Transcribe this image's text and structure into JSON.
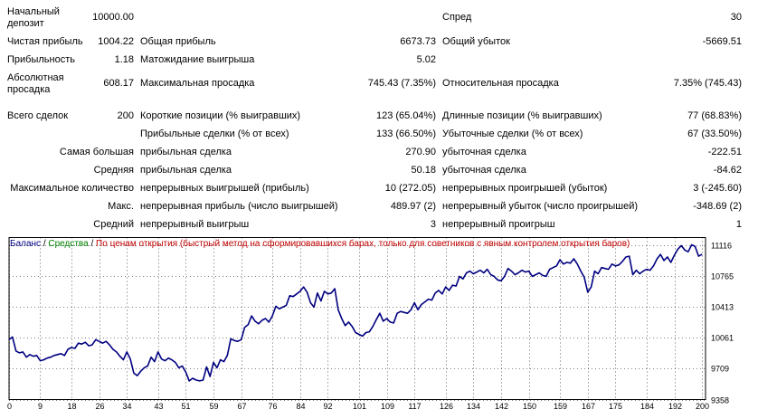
{
  "report": {
    "initial_deposit": {
      "label": "Начальный депозит",
      "value": "10000.00"
    },
    "spread": {
      "label": "Спред",
      "value": "30"
    },
    "net_profit": {
      "label": "Чистая прибыль",
      "value": "1004.22"
    },
    "gross_profit": {
      "label": "Общая прибыль",
      "value": "6673.73"
    },
    "gross_loss": {
      "label": "Общий убыток",
      "value": "-5669.51"
    },
    "profit_factor": {
      "label": "Прибыльность",
      "value": "1.18"
    },
    "expected_payoff": {
      "label": "Матожидание выигрыша",
      "value": "5.02"
    },
    "absolute_drawdown": {
      "label": "Абсолютная просадка",
      "value": "608.17"
    },
    "maximal_drawdown": {
      "label": "Максимальная просадка",
      "value": "745.43 (7.35%)"
    },
    "relative_drawdown": {
      "label": "Относительная просадка",
      "value": "7.35% (745.43)"
    },
    "total_trades": {
      "label": "Всего сделок",
      "value": "200"
    },
    "short_positions": {
      "label": "Короткие позиции (% выигравших)",
      "value": "123 (65.04%)"
    },
    "long_positions": {
      "label": "Длинные позиции (% выигравших)",
      "value": "77 (68.83%)"
    },
    "profit_trades": {
      "label": "Прибыльные сделки (% от всех)",
      "value": "133 (66.50%)"
    },
    "loss_trades": {
      "label": "Убыточные сделки (% от всех)",
      "value": "67 (33.50%)"
    },
    "largest": {
      "label": "Самая большая",
      "profit_label": "прибыльная сделка",
      "profit_value": "270.90",
      "loss_label": "убыточная сделка",
      "loss_value": "-222.51"
    },
    "average": {
      "label": "Средняя",
      "profit_label": "прибыльная сделка",
      "profit_value": "50.18",
      "loss_label": "убыточная сделка",
      "loss_value": "-84.62"
    },
    "max_consecutive": {
      "label": "Максимальное количество",
      "wins_label": "непрерывных выигрышей (прибыль)",
      "wins_value": "10 (272.05)",
      "losses_label": "непрерывных проигрышей (убыток)",
      "losses_value": "3 (-245.60)"
    },
    "max_consecutive_amount": {
      "label": "Макс.",
      "wins_label": "непрерывная прибыль (число выигрышей)",
      "wins_value": "489.97 (2)",
      "losses_label": "непрерывный убыток (число проигрышей)",
      "losses_value": "-348.69 (2)"
    },
    "avg_consecutive": {
      "label": "Средний",
      "wins_label": "непрерывный выигрыш",
      "wins_value": "3",
      "losses_label": "непрерывный проигрыш",
      "losses_value": "1"
    }
  },
  "chart_legend": {
    "balance": "Баланс",
    "separator": " / ",
    "equity": "Средства",
    "mode": "По ценам открытия (быстрый метод на сформировавшихся барах, только для советников с явным контролем открытия баров)"
  },
  "chart_data": {
    "type": "line",
    "colors": {
      "balance": "#000080",
      "grid": "#000000"
    },
    "grid": true,
    "x_ticks": [
      0,
      9,
      18,
      26,
      34,
      43,
      51,
      59,
      67,
      76,
      84,
      92,
      101,
      109,
      117,
      126,
      134,
      142,
      150,
      159,
      167,
      175,
      184,
      192,
      200
    ],
    "x_tick_labels": [
      "0",
      "9",
      "18",
      "26",
      "34",
      "43",
      "51",
      "59",
      "67",
      "76",
      "84",
      "92",
      "101",
      "109",
      "117",
      "126",
      "134",
      "142",
      "150",
      "159",
      "167",
      "175",
      "184",
      "192",
      "200"
    ],
    "y_ticks": [
      9358,
      9709,
      10061,
      10413,
      10765,
      11116
    ],
    "y_tick_labels": [
      "9358",
      "9709",
      "10061",
      "10413",
      "10765",
      "11116"
    ],
    "xlim": [
      0,
      201
    ],
    "ylim": [
      9358,
      11202
    ],
    "series": [
      {
        "key": "balance",
        "points": [
          [
            0,
            10040
          ],
          [
            1,
            10070
          ],
          [
            2,
            9910
          ],
          [
            3,
            9890
          ],
          [
            4,
            9900
          ],
          [
            5,
            9840
          ],
          [
            6,
            9870
          ],
          [
            7,
            9850
          ],
          [
            8,
            9860
          ],
          [
            9,
            9800
          ],
          [
            10,
            9810
          ],
          [
            11,
            9830
          ],
          [
            12,
            9840
          ],
          [
            13,
            9860
          ],
          [
            14,
            9870
          ],
          [
            15,
            9880
          ],
          [
            16,
            9860
          ],
          [
            17,
            9930
          ],
          [
            18,
            9950
          ],
          [
            19,
            9940
          ],
          [
            20,
            10000
          ],
          [
            21,
            9990
          ],
          [
            22,
            10010
          ],
          [
            23,
            9970
          ],
          [
            24,
            9980
          ],
          [
            25,
            10040
          ],
          [
            26,
            10020
          ],
          [
            27,
            10000
          ],
          [
            28,
            10020
          ],
          [
            29,
            9980
          ],
          [
            30,
            9930
          ],
          [
            31,
            9900
          ],
          [
            32,
            9850
          ],
          [
            33,
            9810
          ],
          [
            34,
            9900
          ],
          [
            35,
            9820
          ],
          [
            36,
            9660
          ],
          [
            37,
            9630
          ],
          [
            38,
            9680
          ],
          [
            39,
            9720
          ],
          [
            40,
            9740
          ],
          [
            41,
            9840
          ],
          [
            42,
            9790
          ],
          [
            43,
            9900
          ],
          [
            44,
            9820
          ],
          [
            45,
            9800
          ],
          [
            46,
            9830
          ],
          [
            47,
            9810
          ],
          [
            48,
            9780
          ],
          [
            49,
            9720
          ],
          [
            50,
            9740
          ],
          [
            51,
            9670
          ],
          [
            52,
            9570
          ],
          [
            53,
            9600
          ],
          [
            54,
            9580
          ],
          [
            55,
            9570
          ],
          [
            56,
            9580
          ],
          [
            57,
            9730
          ],
          [
            58,
            9620
          ],
          [
            59,
            9780
          ],
          [
            60,
            9720
          ],
          [
            61,
            9810
          ],
          [
            62,
            9790
          ],
          [
            63,
            9860
          ],
          [
            64,
            10050
          ],
          [
            65,
            10030
          ],
          [
            66,
            10020
          ],
          [
            67,
            10040
          ],
          [
            68,
            10180
          ],
          [
            69,
            10210
          ],
          [
            70,
            10310
          ],
          [
            71,
            10250
          ],
          [
            72,
            10220
          ],
          [
            73,
            10260
          ],
          [
            74,
            10280
          ],
          [
            75,
            10240
          ],
          [
            76,
            10310
          ],
          [
            77,
            10420
          ],
          [
            78,
            10390
          ],
          [
            79,
            10410
          ],
          [
            80,
            10430
          ],
          [
            81,
            10540
          ],
          [
            82,
            10530
          ],
          [
            83,
            10560
          ],
          [
            84,
            10590
          ],
          [
            85,
            10640
          ],
          [
            86,
            10580
          ],
          [
            87,
            10460
          ],
          [
            88,
            10410
          ],
          [
            89,
            10570
          ],
          [
            90,
            10480
          ],
          [
            91,
            10590
          ],
          [
            92,
            10560
          ],
          [
            93,
            10570
          ],
          [
            94,
            10620
          ],
          [
            95,
            10380
          ],
          [
            96,
            10280
          ],
          [
            97,
            10200
          ],
          [
            98,
            10240
          ],
          [
            99,
            10190
          ],
          [
            100,
            10120
          ],
          [
            101,
            10100
          ],
          [
            102,
            10080
          ],
          [
            103,
            10120
          ],
          [
            104,
            10130
          ],
          [
            105,
            10190
          ],
          [
            106,
            10270
          ],
          [
            107,
            10340
          ],
          [
            108,
            10250
          ],
          [
            109,
            10280
          ],
          [
            110,
            10240
          ],
          [
            111,
            10230
          ],
          [
            112,
            10340
          ],
          [
            113,
            10360
          ],
          [
            114,
            10350
          ],
          [
            115,
            10340
          ],
          [
            116,
            10380
          ],
          [
            117,
            10460
          ],
          [
            118,
            10380
          ],
          [
            119,
            10440
          ],
          [
            120,
            10470
          ],
          [
            121,
            10500
          ],
          [
            122,
            10490
          ],
          [
            123,
            10570
          ],
          [
            124,
            10600
          ],
          [
            125,
            10560
          ],
          [
            126,
            10640
          ],
          [
            127,
            10600
          ],
          [
            128,
            10660
          ],
          [
            129,
            10650
          ],
          [
            130,
            10760
          ],
          [
            131,
            10730
          ],
          [
            132,
            10800
          ],
          [
            133,
            10820
          ],
          [
            134,
            10790
          ],
          [
            135,
            10810
          ],
          [
            136,
            10830
          ],
          [
            137,
            10800
          ],
          [
            138,
            10840
          ],
          [
            139,
            10780
          ],
          [
            140,
            10760
          ],
          [
            141,
            10720
          ],
          [
            142,
            10710
          ],
          [
            143,
            10760
          ],
          [
            144,
            10850
          ],
          [
            145,
            10820
          ],
          [
            146,
            10780
          ],
          [
            147,
            10800
          ],
          [
            148,
            10830
          ],
          [
            149,
            10810
          ],
          [
            150,
            10820
          ],
          [
            151,
            10760
          ],
          [
            152,
            10780
          ],
          [
            153,
            10800
          ],
          [
            154,
            10770
          ],
          [
            155,
            10760
          ],
          [
            156,
            10840
          ],
          [
            157,
            10860
          ],
          [
            158,
            10880
          ],
          [
            159,
            10950
          ],
          [
            160,
            10900
          ],
          [
            161,
            10920
          ],
          [
            162,
            10910
          ],
          [
            163,
            10960
          ],
          [
            164,
            10900
          ],
          [
            165,
            10820
          ],
          [
            166,
            10750
          ],
          [
            167,
            10580
          ],
          [
            168,
            10640
          ],
          [
            169,
            10820
          ],
          [
            170,
            10790
          ],
          [
            171,
            10860
          ],
          [
            172,
            10850
          ],
          [
            173,
            10840
          ],
          [
            174,
            10900
          ],
          [
            175,
            10880
          ],
          [
            176,
            10890
          ],
          [
            177,
            10930
          ],
          [
            178,
            10980
          ],
          [
            179,
            10990
          ],
          [
            180,
            10780
          ],
          [
            181,
            10830
          ],
          [
            182,
            10790
          ],
          [
            183,
            10820
          ],
          [
            184,
            10840
          ],
          [
            185,
            10830
          ],
          [
            186,
            10880
          ],
          [
            187,
            10960
          ],
          [
            188,
            11010
          ],
          [
            189,
            10940
          ],
          [
            190,
            10980
          ],
          [
            191,
            10920
          ],
          [
            192,
            11000
          ],
          [
            193,
            11070
          ],
          [
            194,
            11110
          ],
          [
            195,
            11060
          ],
          [
            196,
            11040
          ],
          [
            197,
            11120
          ],
          [
            198,
            11100
          ],
          [
            199,
            10990
          ],
          [
            200,
            11010
          ]
        ]
      }
    ]
  }
}
